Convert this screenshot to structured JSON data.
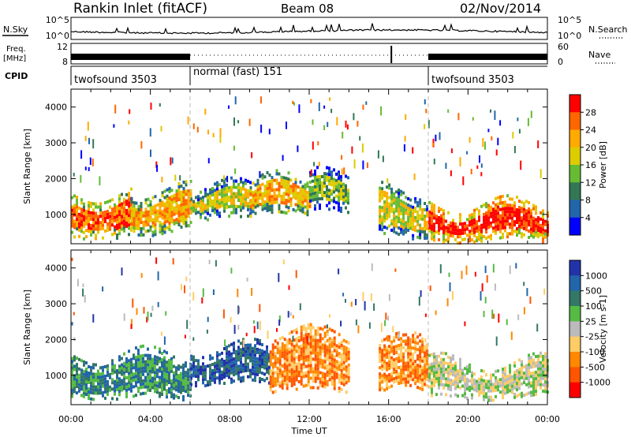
{
  "header": {
    "station": "Rankin Inlet (fitACF)",
    "beam": "Beam 08",
    "date": "02/Nov/2014"
  },
  "strip": {
    "nsky_label": "N.Sky",
    "nsearch_label": "N.Search",
    "freq_label_line1": "Freq.",
    "freq_label_line2": "[MHz]",
    "nave_label": "Nave",
    "cpid_label": "CPID",
    "noise_ticks_left": [
      "10^5",
      "10^0"
    ],
    "noise_ticks_right": [
      "10^5",
      "10^0"
    ],
    "freq_ticks_left": [
      "12",
      "8"
    ],
    "nave_ticks_right": [
      "60",
      "0"
    ]
  },
  "cpid_segments": [
    {
      "name": "twofsound 3503",
      "start_hour": 0,
      "end_hour": 6
    },
    {
      "name": "normal (fast) 151",
      "start_hour": 6,
      "end_hour": 18
    },
    {
      "name": "twofsound 3503",
      "start_hour": 18,
      "end_hour": 24
    }
  ],
  "x_axis": {
    "label": "Time UT",
    "ticks": [
      "00:00",
      "04:00",
      "08:00",
      "12:00",
      "16:00",
      "20:00",
      "00:00"
    ]
  },
  "chart_data": [
    {
      "type": "heatmap",
      "panel": "power",
      "ylabel": "Slant Range [km]",
      "xlabel": "",
      "x_range_hours": [
        0,
        24
      ],
      "ylim": [
        180,
        4500
      ],
      "y_ticks": [
        1000,
        2000,
        3000,
        4000
      ],
      "colorbar": {
        "label": "Power [dB]",
        "ticks": [
          "28",
          "24",
          "20",
          "16",
          "12",
          "8",
          "4"
        ],
        "colors": [
          "#ff0000",
          "#ff6600",
          "#ffaa00",
          "#ddcc00",
          "#66bb33",
          "#337755",
          "#2266aa",
          "#0000ff"
        ]
      },
      "echo_bands": [
        {
          "start_hour": 0,
          "end_hour": 3,
          "range_low_km": 400,
          "range_high_km": 1600,
          "dominant_power_db": 24
        },
        {
          "start_hour": 3,
          "end_hour": 6,
          "range_low_km": 500,
          "range_high_km": 1700,
          "dominant_power_db": 20
        },
        {
          "start_hour": 6,
          "end_hour": 9,
          "range_low_km": 900,
          "range_high_km": 1800,
          "dominant_power_db": 16
        },
        {
          "start_hour": 9,
          "end_hour": 12,
          "range_low_km": 1000,
          "range_high_km": 2000,
          "dominant_power_db": 20
        },
        {
          "start_hour": 12,
          "end_hour": 14,
          "range_low_km": 1100,
          "range_high_km": 2100,
          "dominant_power_db": 12
        },
        {
          "start_hour": 15.5,
          "end_hour": 18,
          "range_low_km": 400,
          "range_high_km": 1700,
          "dominant_power_db": 16
        },
        {
          "start_hour": 18,
          "end_hour": 24,
          "range_low_km": 300,
          "range_high_km": 1300,
          "dominant_power_db": 28
        }
      ]
    },
    {
      "type": "heatmap",
      "panel": "velocity",
      "ylabel": "Slant Range [km]",
      "xlabel": "Time UT",
      "x_range_hours": [
        0,
        24
      ],
      "ylim": [
        180,
        4500
      ],
      "y_ticks": [
        1000,
        2000,
        3000,
        4000
      ],
      "colorbar": {
        "label": "Velocity [m s-1]",
        "ticks": [
          "1000",
          "500",
          "100",
          "25",
          "-25",
          "-100",
          "-500",
          "-1000"
        ],
        "colors": [
          "#2233aa",
          "#2266aa",
          "#337766",
          "#55bb44",
          "#bbbbbb",
          "#ffcc66",
          "#ff8800",
          "#ff5500",
          "#ff0000"
        ]
      },
      "echo_bands": [
        {
          "start_hour": 0,
          "end_hour": 6,
          "range_low_km": 400,
          "range_high_km": 1600,
          "dominant_velocity_ms": 100
        },
        {
          "start_hour": 6,
          "end_hour": 10,
          "range_low_km": 800,
          "range_high_km": 1800,
          "dominant_velocity_ms": 500
        },
        {
          "start_hour": 10,
          "end_hour": 14,
          "range_low_km": 600,
          "range_high_km": 2200,
          "dominant_velocity_ms": -500
        },
        {
          "start_hour": 15.5,
          "end_hour": 18,
          "range_low_km": 600,
          "range_high_km": 2000,
          "dominant_velocity_ms": -500
        },
        {
          "start_hour": 18,
          "end_hour": 24,
          "range_low_km": 400,
          "range_high_km": 1400,
          "dominant_velocity_ms": -25
        }
      ]
    }
  ]
}
